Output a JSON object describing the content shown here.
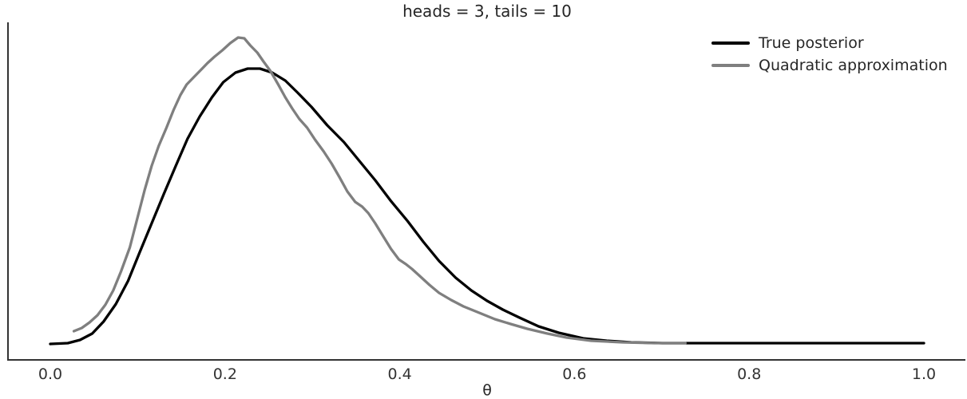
{
  "title": "heads = 3, tails = 10",
  "colors": {
    "background": "#ffffff",
    "spine": "#333333",
    "title_text": "#262626",
    "tick_text": "#333333",
    "true_posterior": "#000000",
    "quadratic_approximation": "#7f7f7f"
  },
  "chart_data": {
    "type": "line",
    "title": "heads = 3, tails = 10",
    "xlabel": "θ",
    "ylabel": "",
    "x_ticks": [
      0.0,
      0.2,
      0.4,
      0.6,
      0.8,
      1.0
    ],
    "x_tick_labels": [
      "0.0",
      "0.2",
      "0.4",
      "0.6",
      "0.8",
      "1.0"
    ],
    "xlim": [
      -0.047,
      1.047
    ],
    "ylim": [
      -0.21,
      4.14
    ],
    "grid": false,
    "legend_position": "upper right",
    "legend_frame": false,
    "series": [
      {
        "name": "True posterior",
        "color": "#000000",
        "line_width": 3.3,
        "points": [
          [
            0.0,
            0.0
          ],
          [
            0.02,
            0.01
          ],
          [
            0.034,
            0.051
          ],
          [
            0.048,
            0.134
          ],
          [
            0.061,
            0.288
          ],
          [
            0.075,
            0.514
          ],
          [
            0.089,
            0.813
          ],
          [
            0.102,
            1.173
          ],
          [
            0.116,
            1.553
          ],
          [
            0.13,
            1.934
          ],
          [
            0.144,
            2.305
          ],
          [
            0.157,
            2.644
          ],
          [
            0.171,
            2.932
          ],
          [
            0.185,
            3.179
          ],
          [
            0.198,
            3.374
          ],
          [
            0.212,
            3.498
          ],
          [
            0.226,
            3.549
          ],
          [
            0.24,
            3.549
          ],
          [
            0.254,
            3.498
          ],
          [
            0.269,
            3.395
          ],
          [
            0.283,
            3.241
          ],
          [
            0.299,
            3.056
          ],
          [
            0.317,
            2.819
          ],
          [
            0.336,
            2.603
          ],
          [
            0.354,
            2.356
          ],
          [
            0.372,
            2.109
          ],
          [
            0.39,
            1.841
          ],
          [
            0.409,
            1.584
          ],
          [
            0.427,
            1.317
          ],
          [
            0.445,
            1.07
          ],
          [
            0.464,
            0.854
          ],
          [
            0.482,
            0.689
          ],
          [
            0.5,
            0.556
          ],
          [
            0.518,
            0.442
          ],
          [
            0.537,
            0.34
          ],
          [
            0.559,
            0.226
          ],
          [
            0.582,
            0.144
          ],
          [
            0.61,
            0.072
          ],
          [
            0.637,
            0.041
          ],
          [
            0.665,
            0.021
          ],
          [
            0.701,
            0.01
          ],
          [
            0.811,
            0.01
          ],
          [
            1.0,
            0.01
          ]
        ]
      },
      {
        "name": "Quadratic approximation",
        "color": "#7f7f7f",
        "line_width": 3.3,
        "points": [
          [
            0.027,
            0.165
          ],
          [
            0.036,
            0.206
          ],
          [
            0.045,
            0.278
          ],
          [
            0.054,
            0.37
          ],
          [
            0.063,
            0.504
          ],
          [
            0.072,
            0.689
          ],
          [
            0.081,
            0.936
          ],
          [
            0.091,
            1.245
          ],
          [
            0.1,
            1.636
          ],
          [
            0.108,
            1.986
          ],
          [
            0.116,
            2.294
          ],
          [
            0.124,
            2.551
          ],
          [
            0.133,
            2.788
          ],
          [
            0.141,
            3.014
          ],
          [
            0.149,
            3.21
          ],
          [
            0.156,
            3.344
          ],
          [
            0.164,
            3.436
          ],
          [
            0.172,
            3.529
          ],
          [
            0.18,
            3.621
          ],
          [
            0.188,
            3.704
          ],
          [
            0.197,
            3.786
          ],
          [
            0.206,
            3.879
          ],
          [
            0.215,
            3.951
          ],
          [
            0.222,
            3.94
          ],
          [
            0.229,
            3.848
          ],
          [
            0.237,
            3.755
          ],
          [
            0.244,
            3.642
          ],
          [
            0.252,
            3.519
          ],
          [
            0.261,
            3.344
          ],
          [
            0.269,
            3.179
          ],
          [
            0.277,
            3.035
          ],
          [
            0.285,
            2.901
          ],
          [
            0.294,
            2.788
          ],
          [
            0.303,
            2.634
          ],
          [
            0.313,
            2.48
          ],
          [
            0.322,
            2.325
          ],
          [
            0.331,
            2.15
          ],
          [
            0.34,
            1.965
          ],
          [
            0.349,
            1.831
          ],
          [
            0.357,
            1.77
          ],
          [
            0.364,
            1.687
          ],
          [
            0.372,
            1.553
          ],
          [
            0.381,
            1.389
          ],
          [
            0.39,
            1.224
          ],
          [
            0.399,
            1.09
          ],
          [
            0.407,
            1.029
          ],
          [
            0.414,
            0.967
          ],
          [
            0.423,
            0.874
          ],
          [
            0.434,
            0.761
          ],
          [
            0.445,
            0.658
          ],
          [
            0.459,
            0.566
          ],
          [
            0.473,
            0.484
          ],
          [
            0.491,
            0.401
          ],
          [
            0.509,
            0.319
          ],
          [
            0.527,
            0.257
          ],
          [
            0.546,
            0.195
          ],
          [
            0.569,
            0.134
          ],
          [
            0.591,
            0.082
          ],
          [
            0.619,
            0.041
          ],
          [
            0.655,
            0.021
          ],
          [
            0.692,
            0.01
          ],
          [
            0.727,
            0.01
          ]
        ]
      }
    ]
  }
}
